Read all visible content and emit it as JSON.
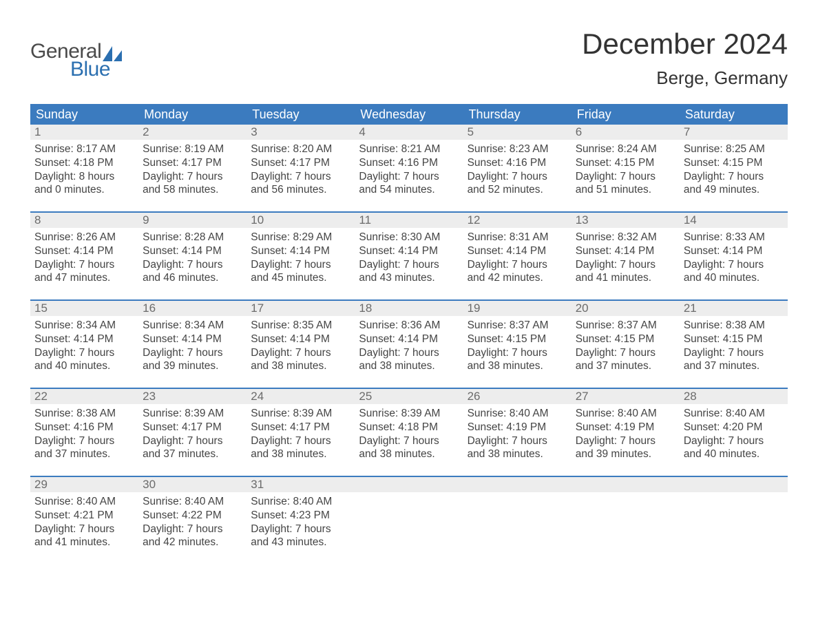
{
  "logo": {
    "general": "General",
    "blue": "Blue",
    "sail_color": "#2b6fb0"
  },
  "title": "December 2024",
  "location": "Berge, Germany",
  "colors": {
    "header_bg": "#3b7bbf",
    "header_text": "#ffffff",
    "daynum_bg": "#ededed",
    "daynum_text": "#6b6b6b",
    "body_text": "#444444",
    "week_border": "#3b7bbf",
    "page_bg": "#ffffff"
  },
  "weekdays": [
    "Sunday",
    "Monday",
    "Tuesday",
    "Wednesday",
    "Thursday",
    "Friday",
    "Saturday"
  ],
  "weeks": [
    [
      {
        "n": "1",
        "sunrise": "8:17 AM",
        "sunset": "4:18 PM",
        "dl1": "Daylight: 8 hours",
        "dl2": "and 0 minutes."
      },
      {
        "n": "2",
        "sunrise": "8:19 AM",
        "sunset": "4:17 PM",
        "dl1": "Daylight: 7 hours",
        "dl2": "and 58 minutes."
      },
      {
        "n": "3",
        "sunrise": "8:20 AM",
        "sunset": "4:17 PM",
        "dl1": "Daylight: 7 hours",
        "dl2": "and 56 minutes."
      },
      {
        "n": "4",
        "sunrise": "8:21 AM",
        "sunset": "4:16 PM",
        "dl1": "Daylight: 7 hours",
        "dl2": "and 54 minutes."
      },
      {
        "n": "5",
        "sunrise": "8:23 AM",
        "sunset": "4:16 PM",
        "dl1": "Daylight: 7 hours",
        "dl2": "and 52 minutes."
      },
      {
        "n": "6",
        "sunrise": "8:24 AM",
        "sunset": "4:15 PM",
        "dl1": "Daylight: 7 hours",
        "dl2": "and 51 minutes."
      },
      {
        "n": "7",
        "sunrise": "8:25 AM",
        "sunset": "4:15 PM",
        "dl1": "Daylight: 7 hours",
        "dl2": "and 49 minutes."
      }
    ],
    [
      {
        "n": "8",
        "sunrise": "8:26 AM",
        "sunset": "4:14 PM",
        "dl1": "Daylight: 7 hours",
        "dl2": "and 47 minutes."
      },
      {
        "n": "9",
        "sunrise": "8:28 AM",
        "sunset": "4:14 PM",
        "dl1": "Daylight: 7 hours",
        "dl2": "and 46 minutes."
      },
      {
        "n": "10",
        "sunrise": "8:29 AM",
        "sunset": "4:14 PM",
        "dl1": "Daylight: 7 hours",
        "dl2": "and 45 minutes."
      },
      {
        "n": "11",
        "sunrise": "8:30 AM",
        "sunset": "4:14 PM",
        "dl1": "Daylight: 7 hours",
        "dl2": "and 43 minutes."
      },
      {
        "n": "12",
        "sunrise": "8:31 AM",
        "sunset": "4:14 PM",
        "dl1": "Daylight: 7 hours",
        "dl2": "and 42 minutes."
      },
      {
        "n": "13",
        "sunrise": "8:32 AM",
        "sunset": "4:14 PM",
        "dl1": "Daylight: 7 hours",
        "dl2": "and 41 minutes."
      },
      {
        "n": "14",
        "sunrise": "8:33 AM",
        "sunset": "4:14 PM",
        "dl1": "Daylight: 7 hours",
        "dl2": "and 40 minutes."
      }
    ],
    [
      {
        "n": "15",
        "sunrise": "8:34 AM",
        "sunset": "4:14 PM",
        "dl1": "Daylight: 7 hours",
        "dl2": "and 40 minutes."
      },
      {
        "n": "16",
        "sunrise": "8:34 AM",
        "sunset": "4:14 PM",
        "dl1": "Daylight: 7 hours",
        "dl2": "and 39 minutes."
      },
      {
        "n": "17",
        "sunrise": "8:35 AM",
        "sunset": "4:14 PM",
        "dl1": "Daylight: 7 hours",
        "dl2": "and 38 minutes."
      },
      {
        "n": "18",
        "sunrise": "8:36 AM",
        "sunset": "4:14 PM",
        "dl1": "Daylight: 7 hours",
        "dl2": "and 38 minutes."
      },
      {
        "n": "19",
        "sunrise": "8:37 AM",
        "sunset": "4:15 PM",
        "dl1": "Daylight: 7 hours",
        "dl2": "and 38 minutes."
      },
      {
        "n": "20",
        "sunrise": "8:37 AM",
        "sunset": "4:15 PM",
        "dl1": "Daylight: 7 hours",
        "dl2": "and 37 minutes."
      },
      {
        "n": "21",
        "sunrise": "8:38 AM",
        "sunset": "4:15 PM",
        "dl1": "Daylight: 7 hours",
        "dl2": "and 37 minutes."
      }
    ],
    [
      {
        "n": "22",
        "sunrise": "8:38 AM",
        "sunset": "4:16 PM",
        "dl1": "Daylight: 7 hours",
        "dl2": "and 37 minutes."
      },
      {
        "n": "23",
        "sunrise": "8:39 AM",
        "sunset": "4:17 PM",
        "dl1": "Daylight: 7 hours",
        "dl2": "and 37 minutes."
      },
      {
        "n": "24",
        "sunrise": "8:39 AM",
        "sunset": "4:17 PM",
        "dl1": "Daylight: 7 hours",
        "dl2": "and 38 minutes."
      },
      {
        "n": "25",
        "sunrise": "8:39 AM",
        "sunset": "4:18 PM",
        "dl1": "Daylight: 7 hours",
        "dl2": "and 38 minutes."
      },
      {
        "n": "26",
        "sunrise": "8:40 AM",
        "sunset": "4:19 PM",
        "dl1": "Daylight: 7 hours",
        "dl2": "and 38 minutes."
      },
      {
        "n": "27",
        "sunrise": "8:40 AM",
        "sunset": "4:19 PM",
        "dl1": "Daylight: 7 hours",
        "dl2": "and 39 minutes."
      },
      {
        "n": "28",
        "sunrise": "8:40 AM",
        "sunset": "4:20 PM",
        "dl1": "Daylight: 7 hours",
        "dl2": "and 40 minutes."
      }
    ],
    [
      {
        "n": "29",
        "sunrise": "8:40 AM",
        "sunset": "4:21 PM",
        "dl1": "Daylight: 7 hours",
        "dl2": "and 41 minutes."
      },
      {
        "n": "30",
        "sunrise": "8:40 AM",
        "sunset": "4:22 PM",
        "dl1": "Daylight: 7 hours",
        "dl2": "and 42 minutes."
      },
      {
        "n": "31",
        "sunrise": "8:40 AM",
        "sunset": "4:23 PM",
        "dl1": "Daylight: 7 hours",
        "dl2": "and 43 minutes."
      },
      {
        "empty": true
      },
      {
        "empty": true
      },
      {
        "empty": true
      },
      {
        "empty": true
      }
    ]
  ],
  "labels": {
    "sunrise": "Sunrise: ",
    "sunset": "Sunset: "
  }
}
